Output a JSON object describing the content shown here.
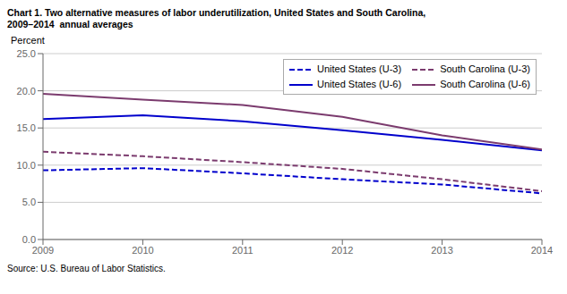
{
  "chart_data": {
    "type": "line",
    "title": "Chart 1. Two alternative measures of labor underutilization, United States and South Carolina,\n2009–2014  annual averages",
    "ylabel": "Percent",
    "annotations": [
      "Source: U.S. Bureau of Labor Statistics."
    ],
    "x": [
      2009,
      2010,
      2011,
      2012,
      2013,
      2014
    ],
    "xlim": [
      2009,
      2014
    ],
    "xticks": [
      2009,
      2010,
      2011,
      2012,
      2013,
      2014
    ],
    "ylim": [
      0,
      25
    ],
    "yticks": [
      {
        "value": 0,
        "label": "0.0"
      },
      {
        "value": 5,
        "label": "5.0"
      },
      {
        "value": 10,
        "label": "10.0"
      },
      {
        "value": 15,
        "label": "15.0"
      },
      {
        "value": 20,
        "label": "20.0"
      },
      {
        "value": 25,
        "label": "25.0"
      }
    ],
    "grid": true,
    "legend": "upper right",
    "series": [
      {
        "name": "United States (U-3)",
        "color": "#0000cc",
        "line_style": "dashed",
        "values": [
          9.3,
          9.6,
          8.9,
          8.1,
          7.4,
          6.2
        ]
      },
      {
        "name": "South Carolina (U-3)",
        "color": "#7b3b6e",
        "line_style": "dashed",
        "values": [
          11.8,
          11.2,
          10.4,
          9.5,
          8.1,
          6.5
        ]
      },
      {
        "name": "United States (U-6)",
        "color": "#0000cc",
        "line_style": "solid",
        "values": [
          16.2,
          16.7,
          15.9,
          14.7,
          13.4,
          12.0
        ]
      },
      {
        "name": "South Carolina (U-6)",
        "color": "#7b3b6e",
        "line_style": "solid",
        "values": [
          19.6,
          18.8,
          18.1,
          16.5,
          14.0,
          12.1
        ]
      }
    ]
  }
}
